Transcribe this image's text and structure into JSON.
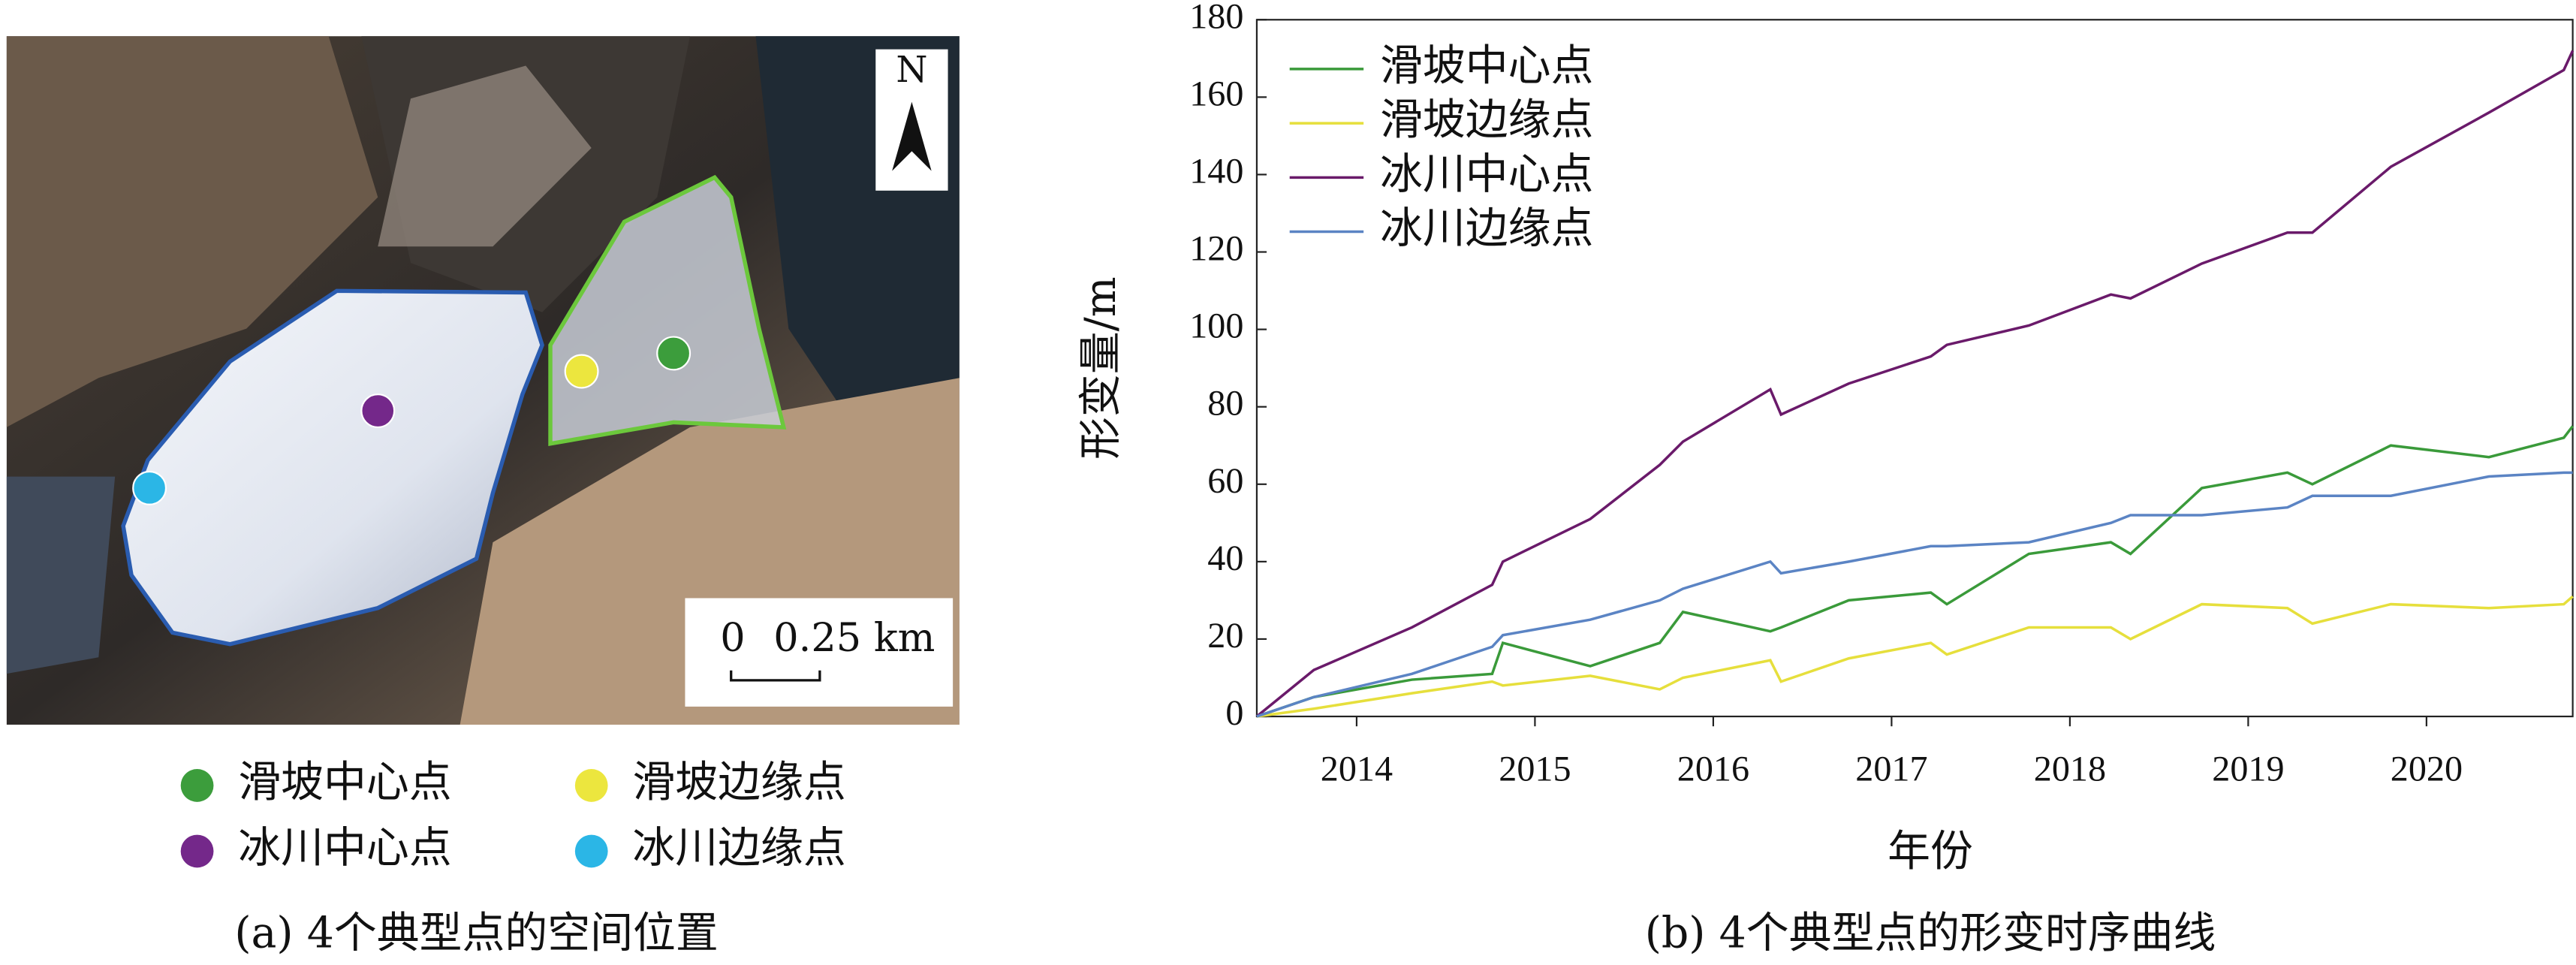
{
  "panel_a": {
    "north_label": "N",
    "scale_labels": [
      "0",
      "0.25 km"
    ],
    "legend": [
      {
        "label": "滑坡中心点",
        "color": "#3c9d3c"
      },
      {
        "label": "滑坡边缘点",
        "color": "#ece63e"
      },
      {
        "label": "冰川中心点",
        "color": "#74288a"
      },
      {
        "label": "冰川边缘点",
        "color": "#2bb6e6"
      }
    ],
    "caption": "(a) 4个典型点的空间位置"
  },
  "chart_data": {
    "type": "line",
    "caption": "(b) 4个典型点的形变时序曲线",
    "xlabel": "年份",
    "ylabel": "形变量/m",
    "x": [
      2013.44,
      2013.76,
      2014.31,
      2014.76,
      2014.82,
      2015.31,
      2015.7,
      2015.83,
      2016.32,
      2016.38,
      2016.76,
      2017.22,
      2017.31,
      2017.77,
      2018.23,
      2018.34,
      2018.74,
      2019.22,
      2019.36,
      2019.8,
      2020.35,
      2020.77,
      2020.82
    ],
    "series": [
      {
        "name": "滑坡中心点",
        "color": "#3a9a3a",
        "values": [
          0,
          5,
          9.5,
          11,
          19,
          13,
          19,
          27,
          22,
          23,
          30,
          32,
          29,
          42,
          45,
          42,
          59,
          63,
          60,
          70,
          67,
          72,
          75
        ]
      },
      {
        "name": "滑坡边缘点",
        "color": "#e6df3c",
        "values": [
          0,
          2,
          6,
          9,
          8,
          10.5,
          7,
          10,
          14.5,
          9,
          15,
          19,
          16,
          23,
          23,
          20,
          29,
          28,
          24,
          29,
          28,
          29,
          31
        ]
      },
      {
        "name": "冰川中心点",
        "color": "#6a1a6a",
        "values": [
          0,
          12,
          23,
          34,
          40,
          51,
          65,
          71,
          84.5,
          78,
          86,
          93,
          96,
          101,
          109,
          108,
          117,
          125,
          125,
          142,
          156,
          167,
          172
        ]
      },
      {
        "name": "冰川边缘点",
        "color": "#5b84c4",
        "values": [
          0,
          5,
          11,
          18,
          21,
          25,
          30,
          33,
          40,
          37,
          40,
          44,
          44,
          45,
          50,
          52,
          52,
          54,
          57,
          57,
          62,
          63,
          63
        ]
      }
    ],
    "xlim": [
      2013.44,
      2020.82
    ],
    "xticks": [
      2014,
      2015,
      2016,
      2017,
      2018,
      2019,
      2020
    ],
    "ylim": [
      0,
      180
    ],
    "yticks": [
      0,
      20,
      40,
      60,
      80,
      100,
      120,
      140,
      160,
      180
    ],
    "legend": "upper left"
  }
}
